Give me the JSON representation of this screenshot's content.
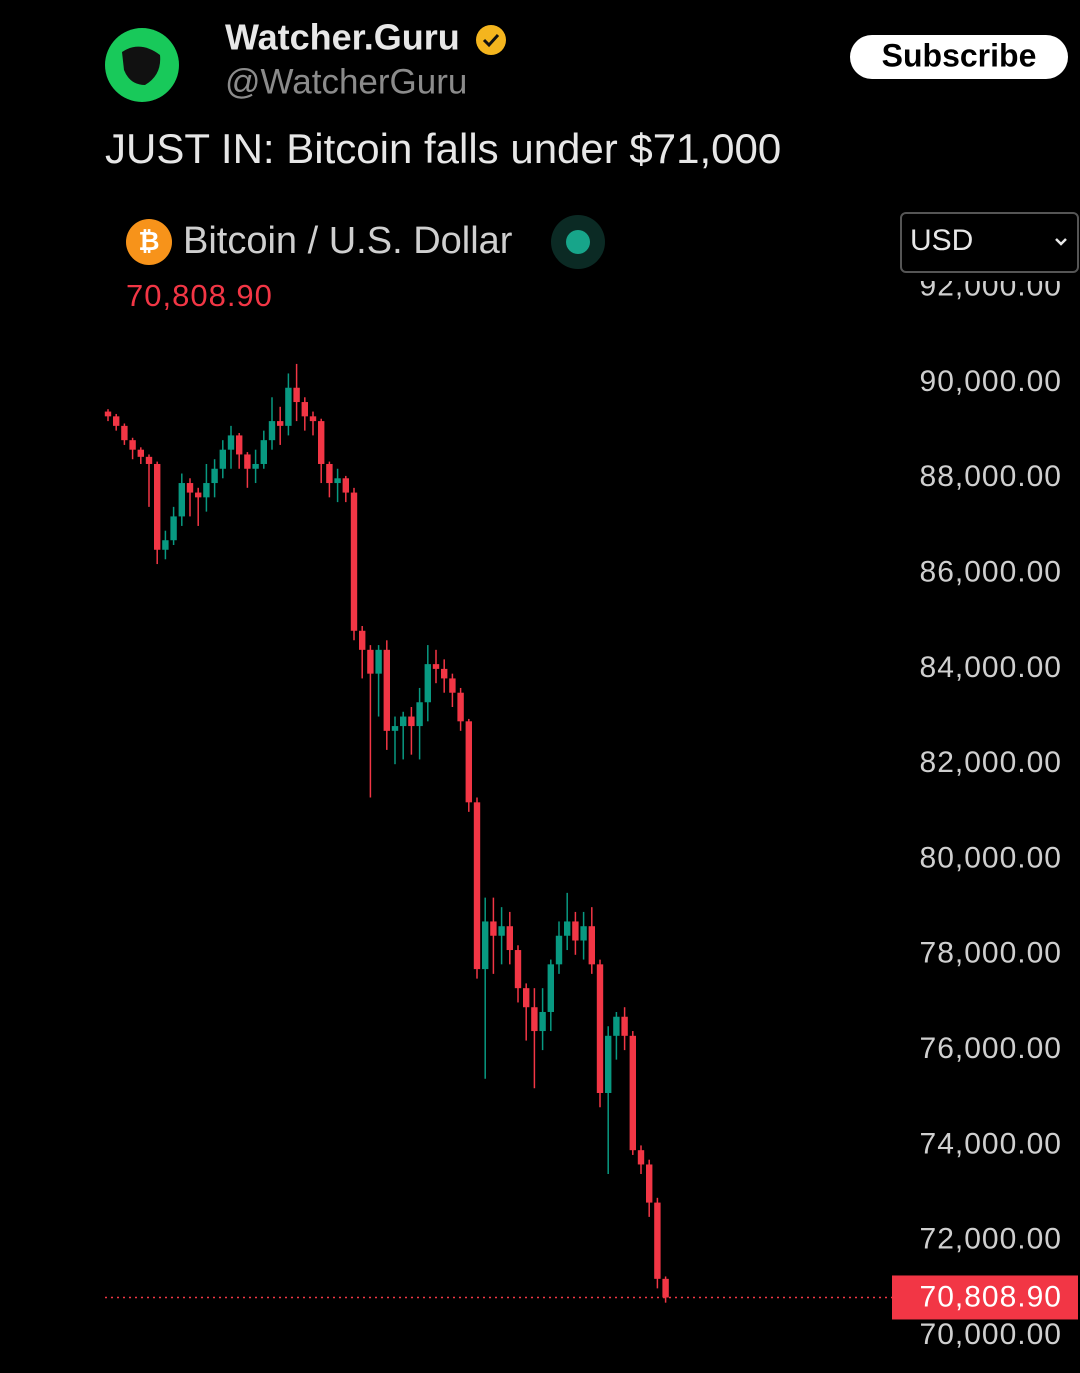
{
  "header": {
    "name": "Watcher.Guru",
    "handle": "@WatcherGuru",
    "button": "Subscribe"
  },
  "tweet": {
    "text": "JUST IN: Bitcoin falls under $71,000"
  },
  "chart_data": {
    "type": "candlestick",
    "title": "Bitcoin / U.S. Dollar",
    "currency": "USD",
    "price_label": "70,808.90",
    "up_color": "#089981",
    "down_color": "#f23645",
    "open": [
      89400,
      89300,
      89100,
      88800,
      88600,
      88450,
      88300,
      86500,
      86700,
      87200,
      87900,
      87700,
      87600,
      87900,
      88200,
      88600,
      88900,
      88500,
      88200,
      88300,
      88800,
      89200,
      89100,
      89900,
      89600,
      89300,
      89200,
      88300,
      87900,
      88000,
      87700,
      84800,
      84400,
      83900,
      84400,
      82700,
      82800,
      83000,
      82800,
      83300,
      84100,
      84000,
      83800,
      83500,
      82900,
      81200,
      77700,
      78700,
      78400,
      78600,
      78100,
      77300,
      76900,
      76400,
      76800,
      77800,
      78400,
      78700,
      78300,
      78600,
      77800,
      75100,
      76300,
      76700,
      76300,
      73900,
      73600,
      72800,
      71200
    ],
    "high": [
      89450,
      89350,
      89150,
      88850,
      88650,
      88500,
      88350,
      86900,
      87400,
      88100,
      88000,
      87800,
      88300,
      88400,
      88800,
      89100,
      88950,
      88550,
      88600,
      89000,
      89700,
      89500,
      90200,
      90400,
      89700,
      89400,
      89250,
      88350,
      88200,
      88050,
      87800,
      84900,
      84500,
      84500,
      84600,
      83000,
      83100,
      83200,
      83600,
      84500,
      84400,
      84200,
      83900,
      83600,
      82950,
      81300,
      79200,
      79200,
      79000,
      78900,
      78200,
      77400,
      77300,
      77300,
      77900,
      78700,
      79300,
      78900,
      78900,
      79000,
      77900,
      76500,
      76800,
      76900,
      76400,
      74000,
      73700,
      72900,
      71250
    ],
    "low": [
      89200,
      89000,
      88700,
      88400,
      88300,
      87400,
      86200,
      86300,
      86600,
      87000,
      87200,
      87000,
      87300,
      87600,
      88000,
      88200,
      88200,
      87800,
      87900,
      88200,
      88600,
      88700,
      88900,
      89200,
      89000,
      88900,
      87900,
      87600,
      87500,
      87500,
      84600,
      83800,
      81300,
      83000,
      82300,
      82000,
      82100,
      82200,
      82100,
      82900,
      83700,
      83500,
      83200,
      82700,
      81000,
      77500,
      75400,
      77600,
      77800,
      77800,
      77000,
      76200,
      75200,
      76000,
      76400,
      77600,
      78100,
      78000,
      77900,
      77600,
      74800,
      73400,
      75800,
      76000,
      73800,
      73400,
      72500,
      71000,
      70700
    ],
    "close": [
      89300,
      89100,
      88800,
      88600,
      88450,
      88300,
      86500,
      86700,
      87200,
      87900,
      87700,
      87600,
      87900,
      88200,
      88600,
      88900,
      88500,
      88200,
      88300,
      88800,
      89200,
      89100,
      89900,
      89600,
      89300,
      89200,
      88300,
      87900,
      88000,
      87700,
      84800,
      84400,
      83900,
      84400,
      82700,
      82800,
      83000,
      82800,
      83300,
      84100,
      84000,
      83800,
      83500,
      82900,
      81200,
      77700,
      78700,
      78400,
      78600,
      78100,
      77300,
      76900,
      76400,
      76800,
      77800,
      78400,
      78700,
      78300,
      78600,
      77800,
      75100,
      76300,
      76700,
      76300,
      73900,
      73600,
      72800,
      71200,
      70808.9
    ],
    "ylim": [
      69224,
      92266
    ],
    "yticks": [
      {
        "value": 70000,
        "label": "70,000.00"
      },
      {
        "value": 72000,
        "label": "72,000.00"
      },
      {
        "value": 74000,
        "label": "74,000.00"
      },
      {
        "value": 76000,
        "label": "76,000.00"
      },
      {
        "value": 78000,
        "label": "78,000.00"
      },
      {
        "value": 80000,
        "label": "80,000.00"
      },
      {
        "value": 82000,
        "label": "82,000.00"
      },
      {
        "value": 84000,
        "label": "84,000.00"
      },
      {
        "value": 86000,
        "label": "86,000.00"
      },
      {
        "value": 88000,
        "label": "88,000.00"
      },
      {
        "value": 90000,
        "label": "90,000.00"
      },
      {
        "value": 92000,
        "label": "92,000.00"
      }
    ]
  }
}
